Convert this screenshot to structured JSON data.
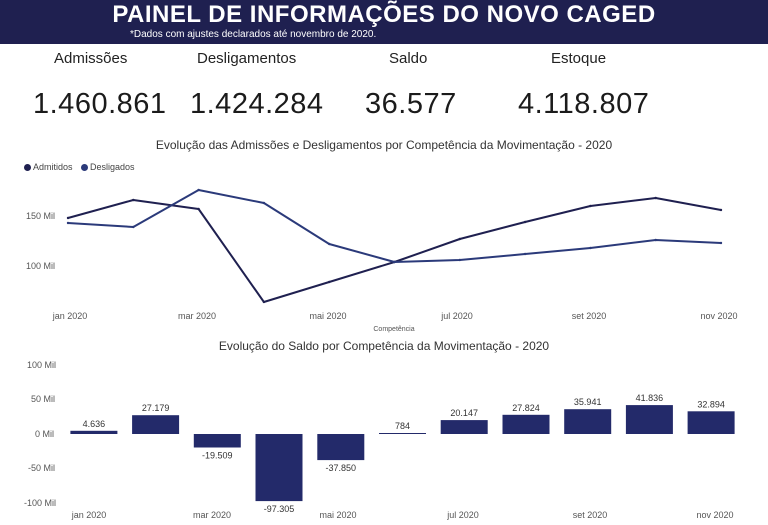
{
  "header": {
    "title": "PAINEL DE INFORMAÇÕES DO NOVO CAGED",
    "subtitle": "*Dados com ajustes declarados até novembro de 2020."
  },
  "kpis": [
    {
      "label": "Admissões",
      "value": "1.460.861"
    },
    {
      "label": "Desligamentos",
      "value": "1.424.284"
    },
    {
      "label": "Saldo",
      "value": "36.577"
    },
    {
      "label": "Estoque",
      "value": "4.118.807"
    }
  ],
  "colors": {
    "banner": "#1f2050",
    "admitidos": "#1f2050",
    "desligados": "#2b3a7a",
    "bars": "#232a6a"
  },
  "chart_data": [
    {
      "type": "line",
      "title": "Evolução das Admissões e Desligamentos por Competência da Movimentação - 2020",
      "xlabel": "Competência",
      "ylabel": "",
      "x": [
        "jan",
        "fev",
        "mar",
        "abr",
        "mai",
        "jun",
        "jul",
        "ago",
        "set",
        "out",
        "nov"
      ],
      "x_tick_labels": [
        "jan 2020",
        "mar 2020",
        "mai 2020",
        "jul 2020",
        "set 2020",
        "nov 2020"
      ],
      "y_tick_labels": [
        "150 Mil",
        "100 Mil"
      ],
      "ylim": [
        50,
        200
      ],
      "legend": "top-left",
      "series": [
        {
          "name": "Admitidos",
          "values": [
            147,
            165,
            156,
            63,
            83,
            103,
            126,
            143,
            159,
            167,
            155
          ]
        },
        {
          "name": "Desligados",
          "values": [
            142,
            138,
            175,
            162,
            121,
            103,
            105,
            111,
            117,
            125,
            122
          ]
        }
      ]
    },
    {
      "type": "bar",
      "title": "Evolução do Saldo por Competência da Movimentação - 2020",
      "categories": [
        "jan",
        "fev",
        "mar",
        "abr",
        "mai",
        "jun",
        "jul",
        "ago",
        "set",
        "out",
        "nov"
      ],
      "values": [
        4636,
        27179,
        -19509,
        -97305,
        -37850,
        784,
        20147,
        27824,
        35941,
        41836,
        32894
      ],
      "data_labels": [
        "4.636",
        "27.179",
        "-19.509",
        "-97.305",
        "-37.850",
        "784",
        "20.147",
        "27.824",
        "35.941",
        "41.836",
        "32.894"
      ],
      "x_tick_labels": [
        "jan 2020",
        "mar 2020",
        "mai 2020",
        "jul 2020",
        "set 2020",
        "nov 2020"
      ],
      "y_tick_labels": [
        "100 Mil",
        "50 Mil",
        "0 Mil",
        "-50 Mil",
        "-100 Mil"
      ],
      "y_ticks": [
        100000,
        50000,
        0,
        -50000,
        -100000
      ],
      "ylim": [
        -100000,
        100000
      ],
      "xlabel": "",
      "ylabel": ""
    }
  ]
}
